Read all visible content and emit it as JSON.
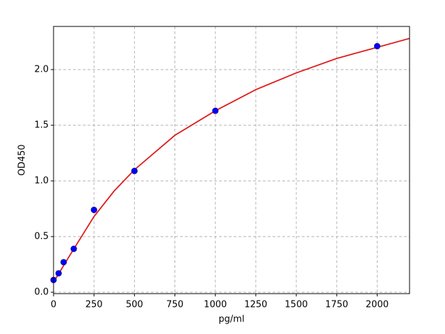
{
  "chart_data": {
    "type": "scatter",
    "xlabel": "pg/ml",
    "ylabel": "OD450",
    "xlim": [
      0,
      2200
    ],
    "ylim": [
      -0.0125,
      2.3875
    ],
    "xticks": [
      0,
      250,
      500,
      750,
      1000,
      1250,
      1500,
      1750,
      2000
    ],
    "yticks": [
      {
        "value": 0,
        "label": "0.0"
      },
      0.5,
      {
        "value": 1,
        "label": "1.0"
      },
      1.5,
      {
        "value": 2,
        "label": "2.0"
      }
    ],
    "grid": true,
    "series": [
      {
        "type": "line",
        "color": "#dd1c1c",
        "x": [
          0,
          50,
          100,
          250,
          375,
          500,
          750,
          1000,
          1250,
          1500,
          1750,
          2000,
          2200
        ],
        "values": [
          0.09,
          0.21,
          0.33,
          0.68,
          0.91,
          1.1,
          1.41,
          1.63,
          1.82,
          1.97,
          2.1,
          2.2,
          2.28
        ]
      },
      {
        "type": "scatter",
        "color": "#0000ff",
        "x": [
          0,
          31.25,
          62.5,
          125,
          250,
          500,
          1000,
          2000
        ],
        "values": [
          0.11,
          0.17,
          0.27,
          0.39,
          0.74,
          1.09,
          1.63,
          2.21
        ]
      }
    ]
  }
}
